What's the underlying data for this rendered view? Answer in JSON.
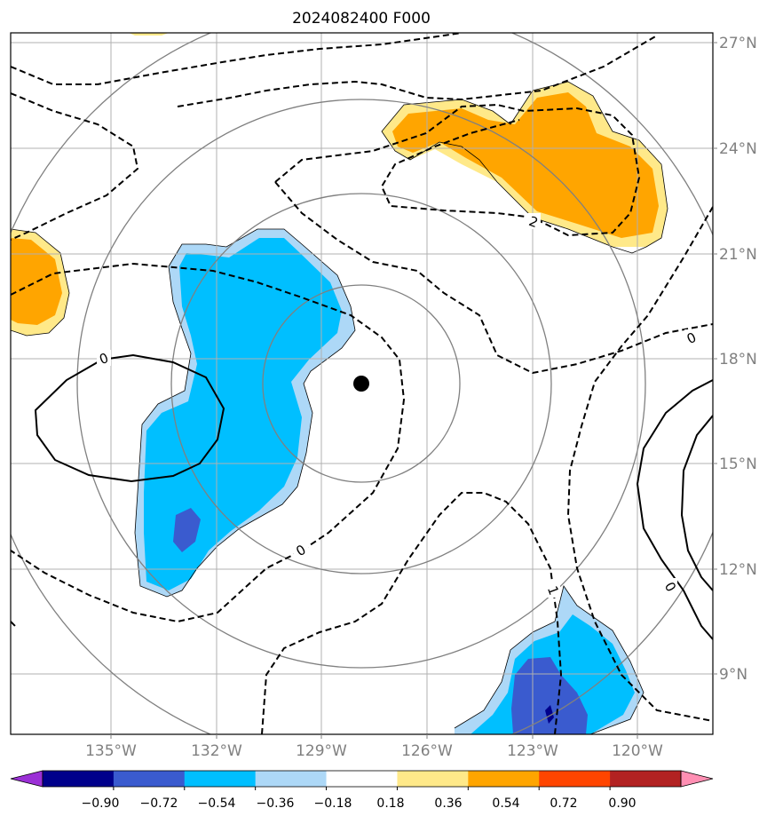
{
  "title": "2024082400 F000",
  "latitude_labels": [
    "27°N",
    "24°N",
    "21°N",
    "18°N",
    "15°N",
    "12°N",
    "9°N"
  ],
  "longitude_labels": [
    "135°W",
    "132°W",
    "129°W",
    "126°W",
    "123°W",
    "120°W"
  ],
  "contour_labels": [
    "0",
    "2",
    "0",
    "0",
    "1",
    "0"
  ],
  "colorbar": {
    "tick_labels": [
      "−0.90",
      "−0.72",
      "−0.54",
      "−0.36",
      "−0.18",
      "0.18",
      "0.36",
      "0.54",
      "0.72",
      "0.90"
    ],
    "colors": [
      "#9b30d6",
      "#00008b",
      "#3a5bcf",
      "#00bfff",
      "#add8f7",
      "#ffffff",
      "#ffe989",
      "#ffa500",
      "#ff4500",
      "#b22222",
      "#ff8fb3"
    ]
  },
  "fill_colors": {
    "orange": "#ffa500",
    "light_yellow": "#ffe989",
    "deep_sky_blue": "#00bfff",
    "light_blue": "#add8f7",
    "royal_blue": "#3a5bcf",
    "navy": "#00008b"
  },
  "storm_center_marker": "black-dot"
}
